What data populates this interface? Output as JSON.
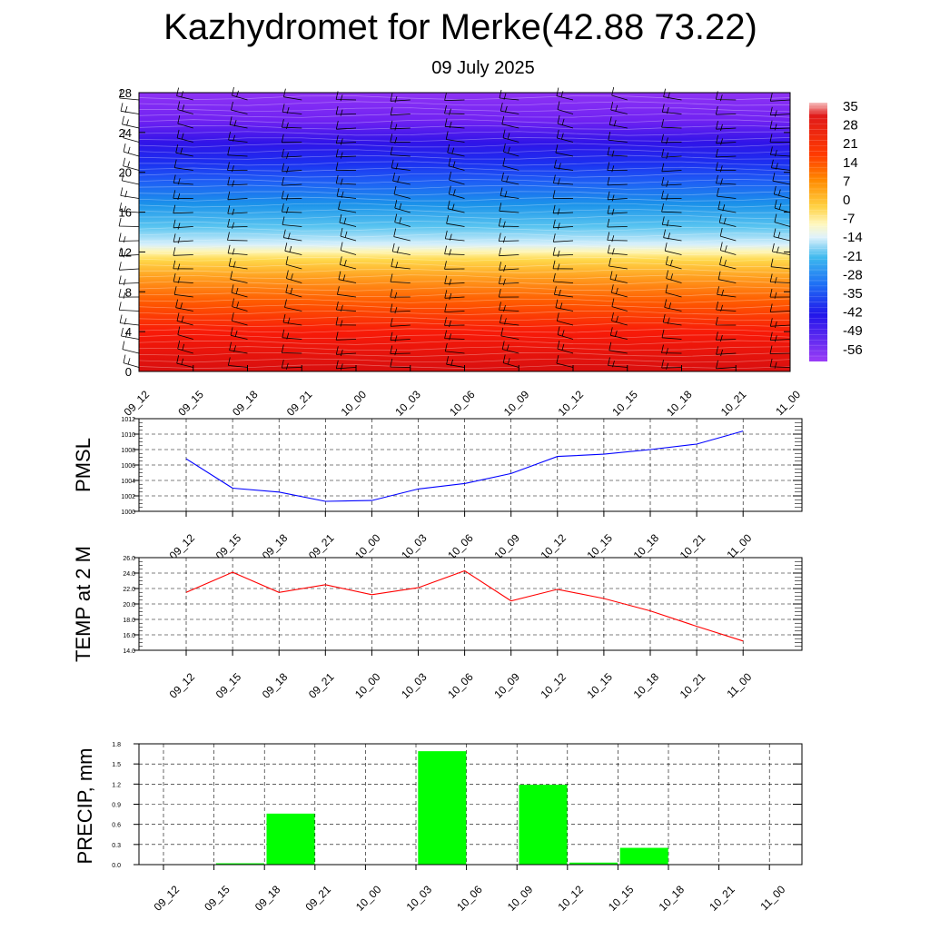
{
  "page": {
    "title": "Kazhydromet for Merke(42.88 73.22)",
    "subtitle": "09 July 2025"
  },
  "chart_data": [
    {
      "type": "heatmap",
      "title": "",
      "ylim": [
        0,
        28
      ],
      "yticks": [
        "0",
        "4",
        "8",
        "12",
        "16",
        "20",
        "24",
        "28"
      ],
      "x": [
        "09_12",
        "09_15",
        "09_18",
        "09_21",
        "10_00",
        "10_03",
        "10_06",
        "10_09",
        "10_12",
        "10_15",
        "10_18",
        "10_21",
        "11_00"
      ],
      "colorbar": {
        "labels": [
          "35",
          "28",
          "21",
          "14",
          "7",
          "0",
          "-7",
          "-14",
          "-21",
          "-28",
          "-35",
          "-42",
          "-49",
          "-56"
        ],
        "colors": [
          "#f4b6b6",
          "#dd1111",
          "#ff3300",
          "#ff8800",
          "#ffcc33",
          "#fff08a",
          "#e6f4fb",
          "#7fd0f0",
          "#1aa6ea",
          "#1e6ef5",
          "#1836f0",
          "#2a10e6",
          "#6a1ff0",
          "#9a3cf6"
        ]
      },
      "isotherm_heights": {
        "0C": 12,
        "-14C": 13
      }
    },
    {
      "type": "line",
      "ylabel": "PMSL",
      "ylim": [
        1000,
        1012
      ],
      "yticks": [
        "1000",
        "1002",
        "1004",
        "1006",
        "1008",
        "1010",
        "1012"
      ],
      "x": [
        "09_12",
        "09_15",
        "09_18",
        "09_21",
        "10_00",
        "10_03",
        "10_06",
        "10_09",
        "10_12",
        "10_15",
        "10_18",
        "10_21",
        "11_00"
      ],
      "series": [
        {
          "color": "#0000ff",
          "values": [
            1006.8,
            1003.0,
            1002.5,
            1001.3,
            1001.4,
            1002.9,
            1003.6,
            1004.9,
            1007.1,
            1007.4,
            1008.0,
            1008.7,
            1010.4
          ]
        }
      ]
    },
    {
      "type": "line",
      "ylabel": "TEMP at 2 M",
      "ylim": [
        14.0,
        26.0
      ],
      "yticks": [
        "14.0",
        "16.0",
        "18.0",
        "20.0",
        "22.0",
        "24.0",
        "26.0"
      ],
      "x": [
        "09_12",
        "09_15",
        "09_18",
        "09_21",
        "10_00",
        "10_03",
        "10_06",
        "10_09",
        "10_12",
        "10_15",
        "10_18",
        "10_21",
        "11_00"
      ],
      "series": [
        {
          "color": "#ff0000",
          "values": [
            21.5,
            24.1,
            21.5,
            22.5,
            21.2,
            22.1,
            24.3,
            20.4,
            21.9,
            20.7,
            19.1,
            17.1,
            15.2
          ]
        }
      ]
    },
    {
      "type": "bar",
      "ylabel": "PRECIP, mm",
      "ylim": [
        0,
        1.8
      ],
      "yticks": [
        "0.0",
        "0.3",
        "0.6",
        "0.9",
        "1.2",
        "1.5",
        "1.8"
      ],
      "categories": [
        "09_12",
        "09_15",
        "09_18",
        "09_21",
        "10_00",
        "10_03",
        "10_06",
        "10_09",
        "10_12",
        "10_15",
        "10_18",
        "10_21",
        "11_00"
      ],
      "values": [
        0,
        0.02,
        0.76,
        0,
        0,
        1.69,
        0,
        1.19,
        0.03,
        0.25,
        0,
        0,
        0
      ],
      "color": "#00ff00"
    }
  ]
}
